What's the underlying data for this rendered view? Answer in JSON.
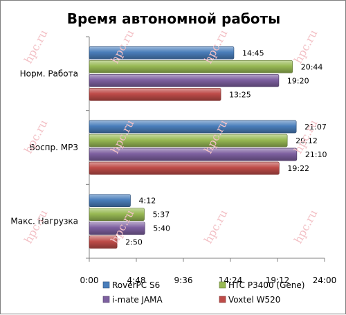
{
  "watermark": "hpc.ru",
  "chart_data": {
    "type": "bar",
    "orientation": "horizontal",
    "title": "Время автономной работы",
    "categories": [
      "Норм. Работа",
      "Воспр. MP3",
      "Макс. Нагрузка"
    ],
    "x_tick_labels": [
      "0:00",
      "4:48",
      "9:36",
      "14:24",
      "19:12",
      "24:00"
    ],
    "xlim_minutes": [
      0,
      1440
    ],
    "grid": false,
    "legend_position": "bottom",
    "series": [
      {
        "name": "RoverPC S6",
        "color": "#4a7ebb",
        "values_minutes": [
          885,
          1267,
          252
        ],
        "labels": [
          "14:45",
          "21:07",
          "4:12"
        ]
      },
      {
        "name": "HTC P3400 (Gene)",
        "color": "#98b954",
        "values_minutes": [
          1244,
          1212,
          337
        ],
        "labels": [
          "20:44",
          "20:12",
          "5:37"
        ]
      },
      {
        "name": "i-mate JAMA",
        "color": "#7d60a0",
        "values_minutes": [
          1160,
          1270,
          340
        ],
        "labels": [
          "19:20",
          "21:10",
          "5:40"
        ]
      },
      {
        "name": "Voxtel W520",
        "color": "#be4b48",
        "values_minutes": [
          805,
          1162,
          170
        ],
        "labels": [
          "13:25",
          "19:22",
          "2:50"
        ]
      }
    ]
  }
}
